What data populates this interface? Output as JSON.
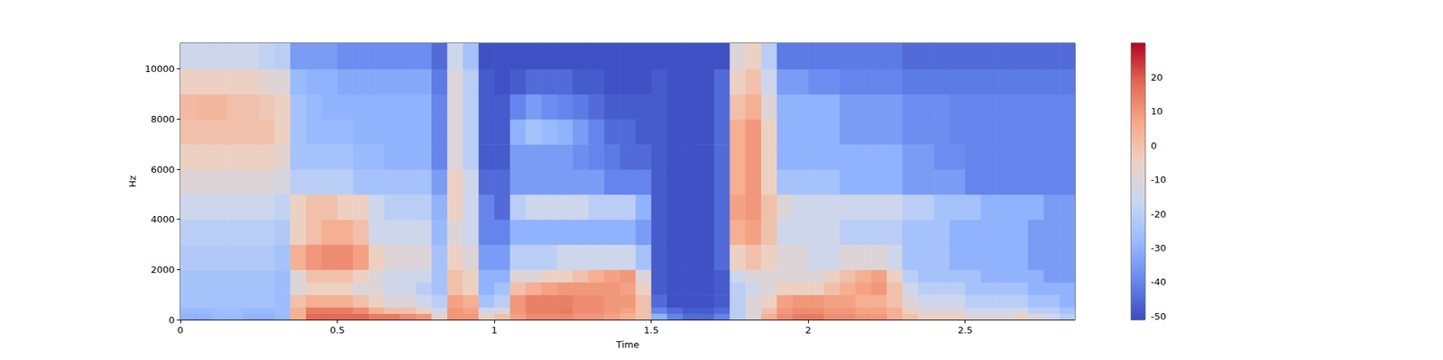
{
  "chart_data": {
    "type": "heatmap",
    "x_label": "Time",
    "y_label": "Hz",
    "x_edges": [
      0,
      0.05,
      0.1,
      0.15,
      0.2,
      0.25,
      0.3,
      0.35,
      0.4,
      0.45,
      0.5,
      0.55,
      0.6,
      0.65,
      0.7,
      0.75,
      0.8,
      0.85,
      0.9,
      0.95,
      1,
      1.05,
      1.1,
      1.15,
      1.2,
      1.25,
      1.3,
      1.35,
      1.4,
      1.45,
      1.5,
      1.55,
      1.6,
      1.65,
      1.7,
      1.75,
      1.8,
      1.85,
      1.9,
      1.95,
      2,
      2.05,
      2.1,
      2.15,
      2.2,
      2.25,
      2.3,
      2.35,
      2.4,
      2.45,
      2.5,
      2.55,
      2.6,
      2.65,
      2.7,
      2.75,
      2.8,
      2.85
    ],
    "y_edges": [
      0,
      250,
      500,
      1000,
      1500,
      2000,
      3000,
      4000,
      5000,
      6000,
      7000,
      8000,
      9000,
      10000,
      11025
    ],
    "values": [
      [
        -30,
        -30,
        -28,
        -28,
        -30,
        -30,
        -28,
        5,
        18,
        18,
        18,
        18,
        15,
        15,
        12,
        10,
        -5,
        10,
        10,
        -5,
        0,
        8,
        12,
        12,
        12,
        10,
        10,
        8,
        5,
        0,
        -30,
        -40,
        -45,
        -45,
        -40,
        -20,
        -10,
        5,
        12,
        15,
        15,
        12,
        12,
        10,
        10,
        5,
        0,
        -5,
        -5,
        -5,
        -10,
        -10,
        -10,
        -5,
        -10,
        -15,
        -20
      ],
      [
        -28,
        -28,
        -27,
        -27,
        -28,
        -28,
        -27,
        5,
        15,
        15,
        15,
        12,
        5,
        0,
        0,
        -5,
        -15,
        10,
        8,
        -15,
        -10,
        10,
        14,
        14,
        15,
        12,
        12,
        10,
        8,
        0,
        -40,
        -45,
        -48,
        -48,
        -45,
        -20,
        -10,
        0,
        10,
        12,
        12,
        10,
        10,
        8,
        8,
        5,
        -5,
        -10,
        -10,
        -10,
        -15,
        -15,
        -15,
        -15,
        -20,
        -20,
        -25
      ],
      [
        -25,
        -25,
        -25,
        -25,
        -25,
        -25,
        -27,
        0,
        5,
        5,
        5,
        0,
        -5,
        -10,
        -10,
        -15,
        -20,
        8,
        5,
        -25,
        -20,
        10,
        14,
        14,
        14,
        12,
        12,
        10,
        10,
        0,
        -45,
        -50,
        -50,
        -50,
        -48,
        -20,
        -10,
        -5,
        8,
        10,
        10,
        8,
        8,
        5,
        5,
        0,
        -10,
        -15,
        -15,
        -15,
        -20,
        -20,
        -20,
        -20,
        -25,
        -25,
        -30
      ],
      [
        -25,
        -25,
        -25,
        -25,
        -25,
        -25,
        -27,
        -10,
        -5,
        -5,
        -5,
        -10,
        -10,
        -15,
        -15,
        -20,
        -25,
        0,
        -5,
        -30,
        -25,
        0,
        5,
        8,
        10,
        10,
        10,
        10,
        8,
        -5,
        -48,
        -50,
        -50,
        -50,
        -48,
        -20,
        -15,
        -10,
        -5,
        -5,
        -5,
        0,
        5,
        8,
        10,
        0,
        -15,
        -20,
        -20,
        -20,
        -25,
        -25,
        -25,
        -25,
        -30,
        -30,
        -30
      ],
      [
        -25,
        -25,
        -25,
        -25,
        -25,
        -25,
        -27,
        -10,
        0,
        0,
        0,
        -5,
        -10,
        -15,
        -15,
        -15,
        -25,
        0,
        -5,
        -30,
        -30,
        -10,
        -10,
        -5,
        -5,
        0,
        5,
        8,
        10,
        -10,
        -48,
        -50,
        -50,
        -50,
        -48,
        -15,
        -10,
        -10,
        -10,
        -10,
        -10,
        -5,
        0,
        5,
        8,
        -5,
        -20,
        -25,
        -25,
        -25,
        -25,
        -30,
        -30,
        -30,
        -30,
        -35,
        -35
      ],
      [
        -22,
        -22,
        -22,
        -22,
        -22,
        -22,
        -25,
        5,
        10,
        12,
        12,
        8,
        -5,
        -10,
        -10,
        -10,
        -25,
        -5,
        -10,
        -35,
        -35,
        -20,
        -20,
        -20,
        -15,
        -15,
        -15,
        -15,
        -15,
        -25,
        -48,
        -50,
        -50,
        -50,
        -45,
        -5,
        0,
        -5,
        -10,
        -10,
        -15,
        -15,
        -10,
        -10,
        -10,
        -15,
        -25,
        -25,
        -25,
        -30,
        -30,
        -30,
        -30,
        -30,
        -35,
        -35,
        -35
      ],
      [
        -20,
        -20,
        -20,
        -20,
        -20,
        -20,
        -22,
        -5,
        0,
        5,
        5,
        0,
        -15,
        -15,
        -15,
        -15,
        -28,
        -10,
        -15,
        -40,
        -40,
        -30,
        -30,
        -30,
        -30,
        -30,
        -30,
        -30,
        -30,
        -35,
        -48,
        -50,
        -50,
        -50,
        -45,
        5,
        8,
        0,
        -15,
        -15,
        -15,
        -15,
        -20,
        -20,
        -20,
        -20,
        -25,
        -25,
        -25,
        -30,
        -30,
        -30,
        -30,
        -30,
        -35,
        -35,
        -35
      ],
      [
        -15,
        -15,
        -15,
        -15,
        -15,
        -15,
        -18,
        -5,
        0,
        0,
        -5,
        -5,
        -15,
        -20,
        -20,
        -20,
        -30,
        -5,
        -15,
        -40,
        -45,
        -20,
        -15,
        -15,
        -15,
        -15,
        -20,
        -20,
        -20,
        -30,
        -48,
        -50,
        -50,
        -50,
        -45,
        8,
        10,
        0,
        -10,
        -15,
        -15,
        -15,
        -15,
        -15,
        -15,
        -15,
        -20,
        -20,
        -25,
        -25,
        -25,
        -30,
        -30,
        -30,
        -30,
        -35,
        -35
      ],
      [
        -10,
        -10,
        -10,
        -10,
        -10,
        -10,
        -12,
        -20,
        -20,
        -20,
        -20,
        -25,
        -25,
        -25,
        -25,
        -25,
        -35,
        -5,
        -15,
        -45,
        -45,
        -35,
        -35,
        -35,
        -35,
        -35,
        -35,
        -40,
        -40,
        -40,
        -48,
        -50,
        -50,
        -50,
        -45,
        5,
        10,
        -5,
        -25,
        -25,
        -25,
        -25,
        -30,
        -30,
        -30,
        -30,
        -35,
        -35,
        -35,
        -35,
        -40,
        -40,
        -40,
        -40,
        -40,
        -40,
        -40
      ],
      [
        -5,
        -5,
        -5,
        -5,
        -5,
        -5,
        -8,
        -25,
        -25,
        -25,
        -25,
        -28,
        -28,
        -30,
        -30,
        -30,
        -40,
        -10,
        -20,
        -48,
        -48,
        -35,
        -35,
        -35,
        -35,
        -38,
        -40,
        -42,
        -45,
        -45,
        -48,
        -50,
        -50,
        -50,
        -45,
        5,
        10,
        -5,
        -30,
        -30,
        -30,
        -30,
        -30,
        -30,
        -30,
        -30,
        -35,
        -35,
        -38,
        -38,
        -40,
        -40,
        -40,
        -40,
        -40,
        -40,
        -40
      ],
      [
        0,
        0,
        0,
        0,
        0,
        0,
        -5,
        -25,
        -28,
        -28,
        -28,
        -30,
        -30,
        -30,
        -30,
        -30,
        -40,
        -10,
        -20,
        -48,
        -48,
        -30,
        -25,
        -28,
        -30,
        -35,
        -40,
        -45,
        -45,
        -48,
        -48,
        -50,
        -50,
        -50,
        -45,
        5,
        10,
        -5,
        -30,
        -30,
        -30,
        -30,
        -35,
        -35,
        -35,
        -35,
        -38,
        -38,
        -38,
        -40,
        -40,
        -40,
        -40,
        -40,
        -40,
        -40,
        -40
      ],
      [
        2,
        3,
        3,
        0,
        0,
        -2,
        -5,
        -25,
        -28,
        -30,
        -30,
        -30,
        -30,
        -30,
        -30,
        -30,
        -40,
        -10,
        -20,
        -48,
        -48,
        -40,
        -35,
        -38,
        -40,
        -42,
        -45,
        -48,
        -48,
        -48,
        -48,
        -50,
        -50,
        -50,
        -45,
        0,
        5,
        -10,
        -30,
        -30,
        -30,
        -30,
        -35,
        -35,
        -35,
        -35,
        -38,
        -38,
        -38,
        -40,
        -40,
        -40,
        -40,
        -40,
        -40,
        -40,
        -40
      ],
      [
        -5,
        -5,
        -5,
        -5,
        -5,
        -8,
        -10,
        -28,
        -30,
        -30,
        -32,
        -32,
        -32,
        -32,
        -32,
        -32,
        -42,
        -10,
        -20,
        -48,
        -50,
        -48,
        -45,
        -45,
        -45,
        -48,
        -48,
        -50,
        -50,
        -50,
        -48,
        -50,
        -50,
        -50,
        -45,
        -5,
        0,
        -15,
        -35,
        -35,
        -38,
        -38,
        -40,
        -40,
        -40,
        -40,
        -42,
        -42,
        -42,
        -42,
        -42,
        -42,
        -42,
        -42,
        -42,
        -42,
        -42
      ],
      [
        -15,
        -15,
        -15,
        -15,
        -15,
        -18,
        -20,
        -35,
        -35,
        -35,
        -38,
        -38,
        -38,
        -38,
        -38,
        -38,
        -45,
        -15,
        -25,
        -50,
        -50,
        -50,
        -50,
        -50,
        -50,
        -50,
        -50,
        -50,
        -50,
        -50,
        -50,
        -50,
        -50,
        -50,
        -50,
        -10,
        -5,
        -20,
        -42,
        -42,
        -42,
        -42,
        -42,
        -42,
        -42,
        -42,
        -45,
        -45,
        -45,
        -45,
        -45,
        -45,
        -45,
        -45,
        -45,
        -45,
        -45
      ]
    ],
    "xlim": [
      0,
      2.85
    ],
    "xticks": [
      0,
      0.5,
      1,
      1.5,
      2,
      2.5
    ],
    "ylim": [
      0,
      11025
    ],
    "yticks": [
      0,
      2000,
      4000,
      6000,
      8000,
      10000
    ],
    "colorbar": {
      "range": [
        -51,
        30
      ],
      "ticks": [
        -50,
        -40,
        -30,
        -20,
        -10,
        0,
        10,
        20
      ]
    }
  }
}
